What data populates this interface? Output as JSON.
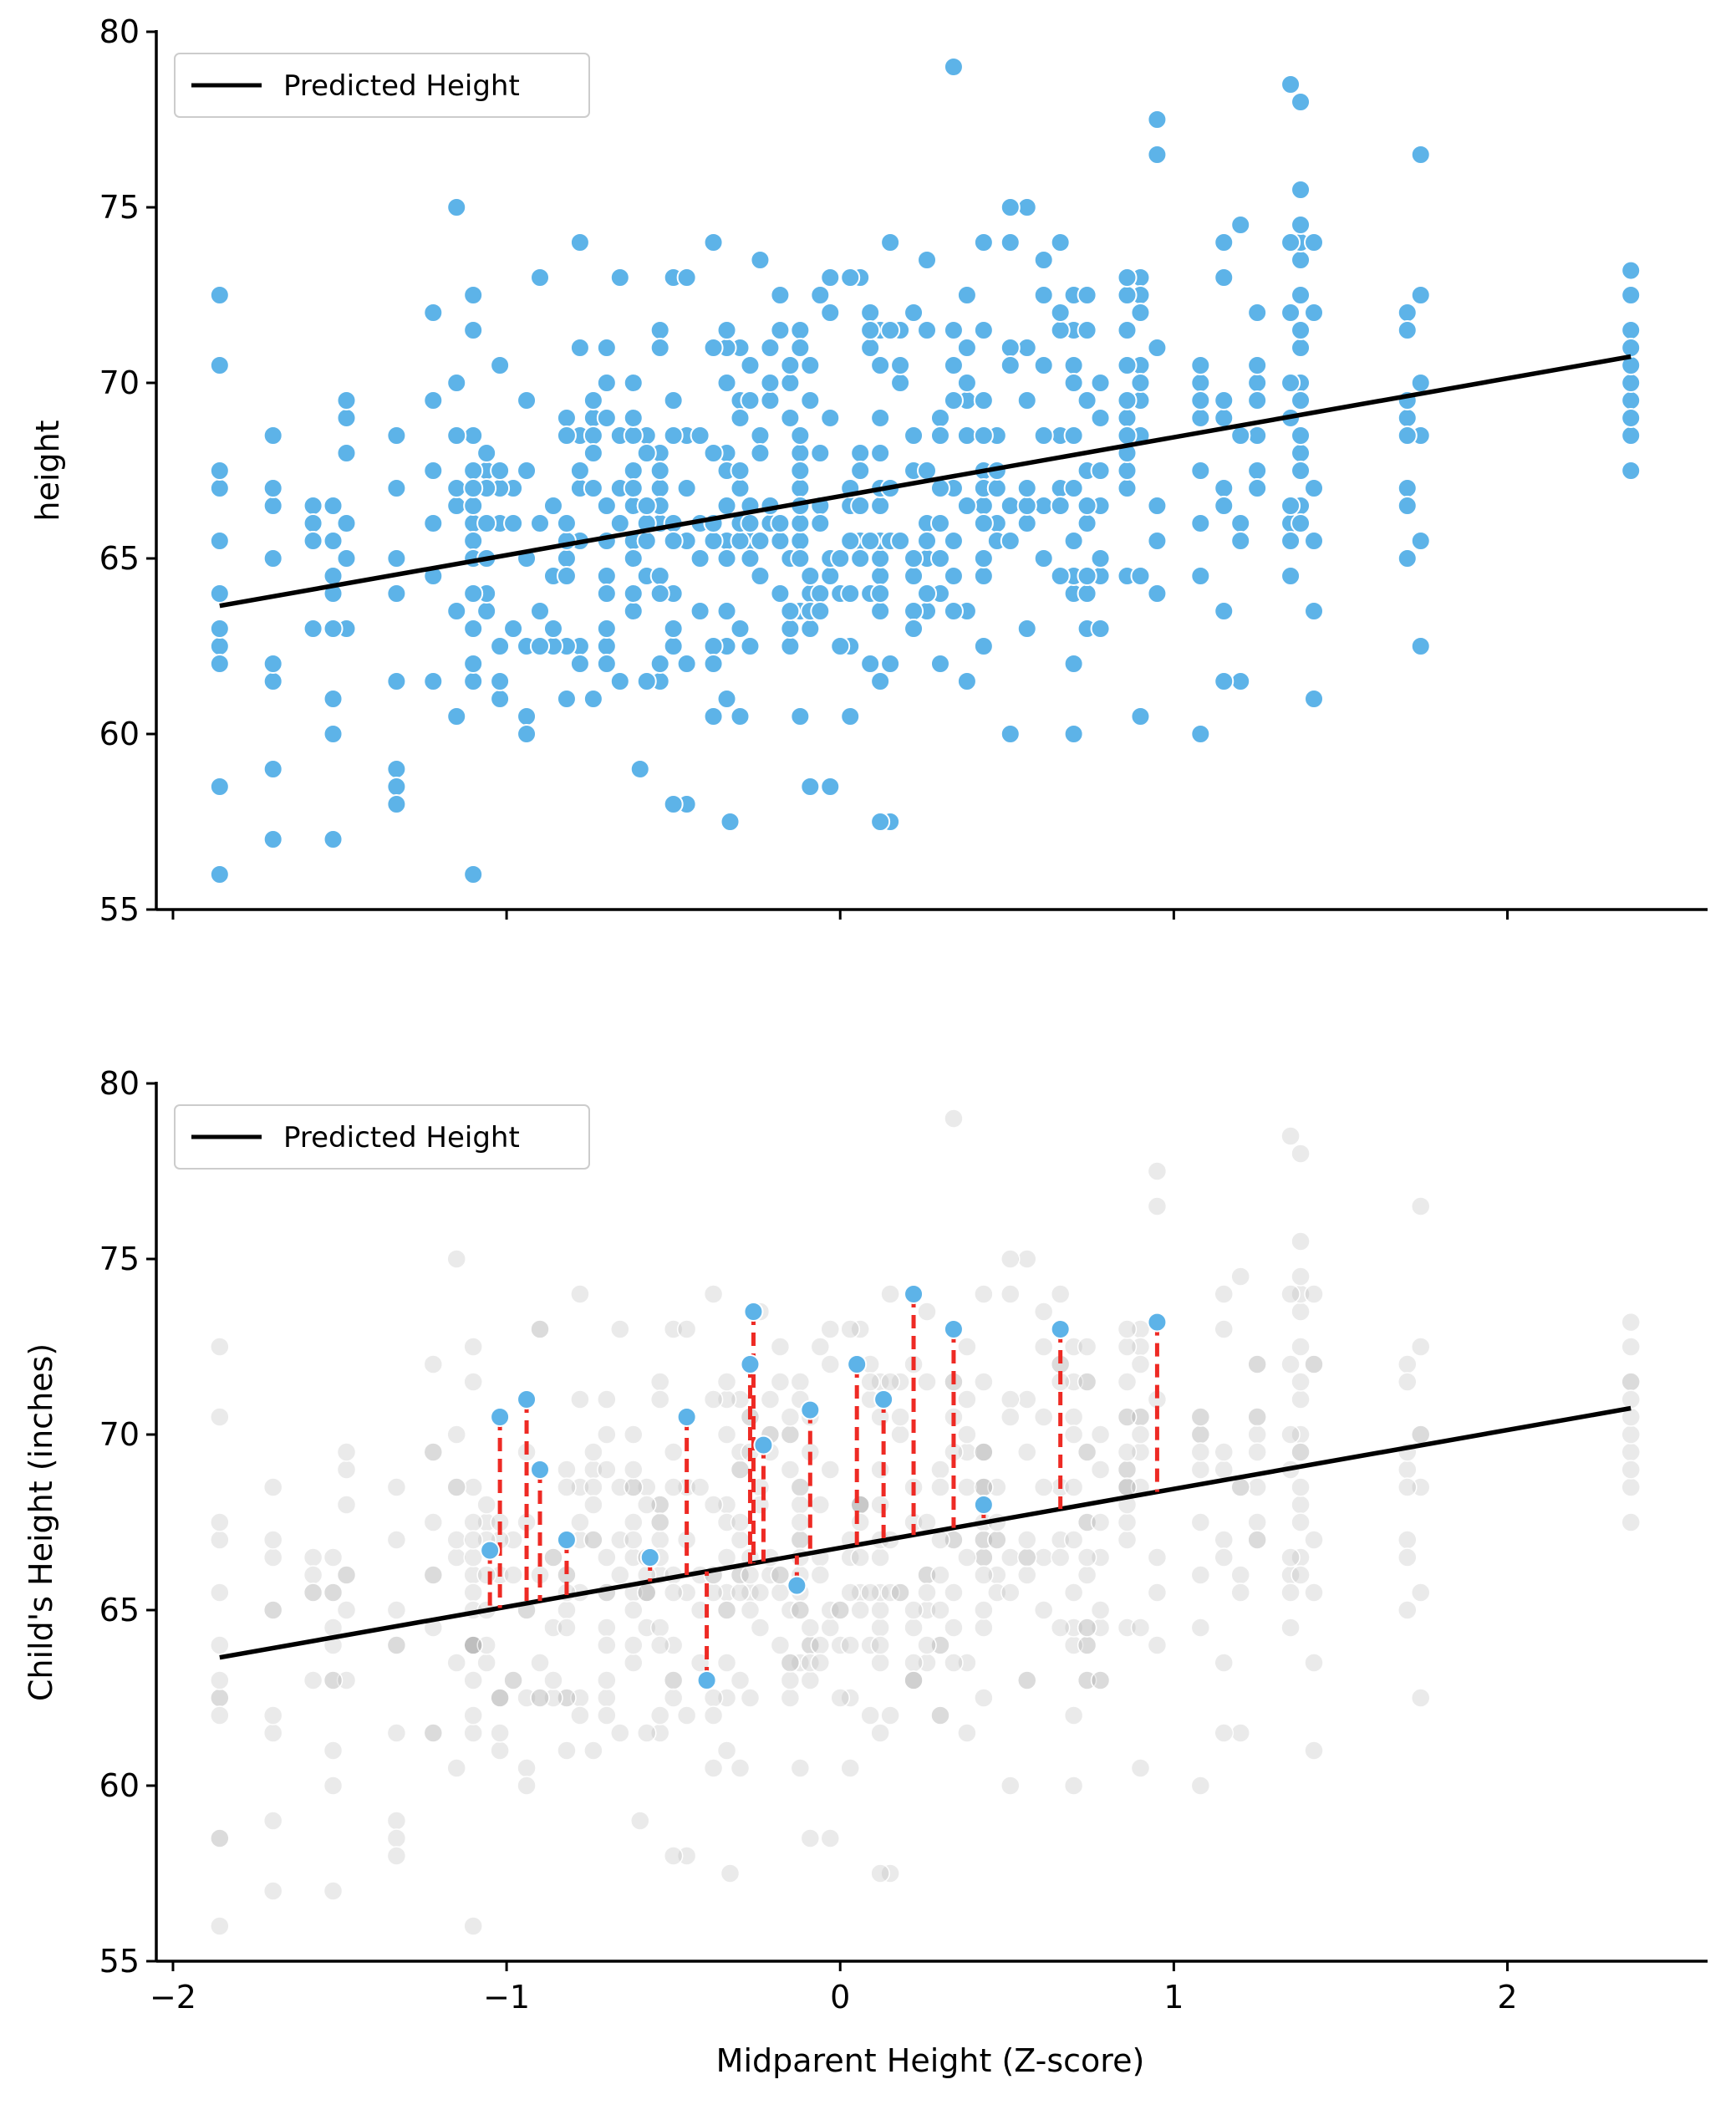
{
  "colors": {
    "scatter": "#5DB3E8",
    "scatter_edge": "#ffffff",
    "faded": "#b4b4b4",
    "line": "#000000",
    "residual": "#ee2a24"
  },
  "chart_data": [
    {
      "id": "top",
      "type": "scatter",
      "title": "",
      "xlabel": "",
      "ylabel": "height",
      "xlim": [
        -2.05,
        2.6
      ],
      "ylim": [
        55,
        80
      ],
      "xticks": [
        -2,
        -1,
        0,
        1,
        2
      ],
      "xtick_labels_visible": false,
      "yticks": [
        55,
        60,
        65,
        70,
        75,
        80
      ],
      "grid": false,
      "legend": {
        "position": "top-left",
        "entries": [
          "Predicted Height"
        ]
      },
      "line": {
        "name": "Predicted Height",
        "x": [
          -1.86,
          2.37
        ],
        "y": [
          63.65,
          70.75
        ]
      },
      "scatter_note": "subset of visible points"
    },
    {
      "id": "bottom",
      "type": "scatter",
      "title": "",
      "xlabel": "Midparent Height (Z-score)",
      "ylabel": "Child's Height (inches)",
      "xlim": [
        -2.05,
        2.6
      ],
      "ylim": [
        55,
        80
      ],
      "xticks": [
        -2,
        -1,
        0,
        1,
        2
      ],
      "xtick_labels": [
        "−2",
        "−1",
        "0",
        "1",
        "2"
      ],
      "yticks": [
        55,
        60,
        65,
        70,
        75,
        80
      ],
      "grid": false,
      "legend": {
        "position": "top-left",
        "entries": [
          "Predicted Height"
        ]
      },
      "line": {
        "name": "Predicted Height",
        "x": [
          -1.86,
          2.37
        ],
        "y": [
          63.65,
          70.75
        ]
      },
      "highlighted": [
        [
          -1.05,
          66.7
        ],
        [
          -1.02,
          70.5
        ],
        [
          -0.94,
          71.0
        ],
        [
          -0.9,
          69.0
        ],
        [
          -0.82,
          67.0
        ],
        [
          -0.57,
          66.5
        ],
        [
          -0.46,
          70.5
        ],
        [
          -0.4,
          63.0
        ],
        [
          -0.27,
          72.0
        ],
        [
          -0.26,
          73.5
        ],
        [
          -0.23,
          69.7
        ],
        [
          -0.13,
          65.7
        ],
        [
          -0.09,
          70.7
        ],
        [
          0.05,
          72.0
        ],
        [
          0.13,
          71.0
        ],
        [
          0.22,
          74.0
        ],
        [
          0.34,
          73.0
        ],
        [
          0.43,
          68.0
        ],
        [
          0.66,
          73.0
        ],
        [
          0.95,
          73.2
        ]
      ]
    }
  ]
}
